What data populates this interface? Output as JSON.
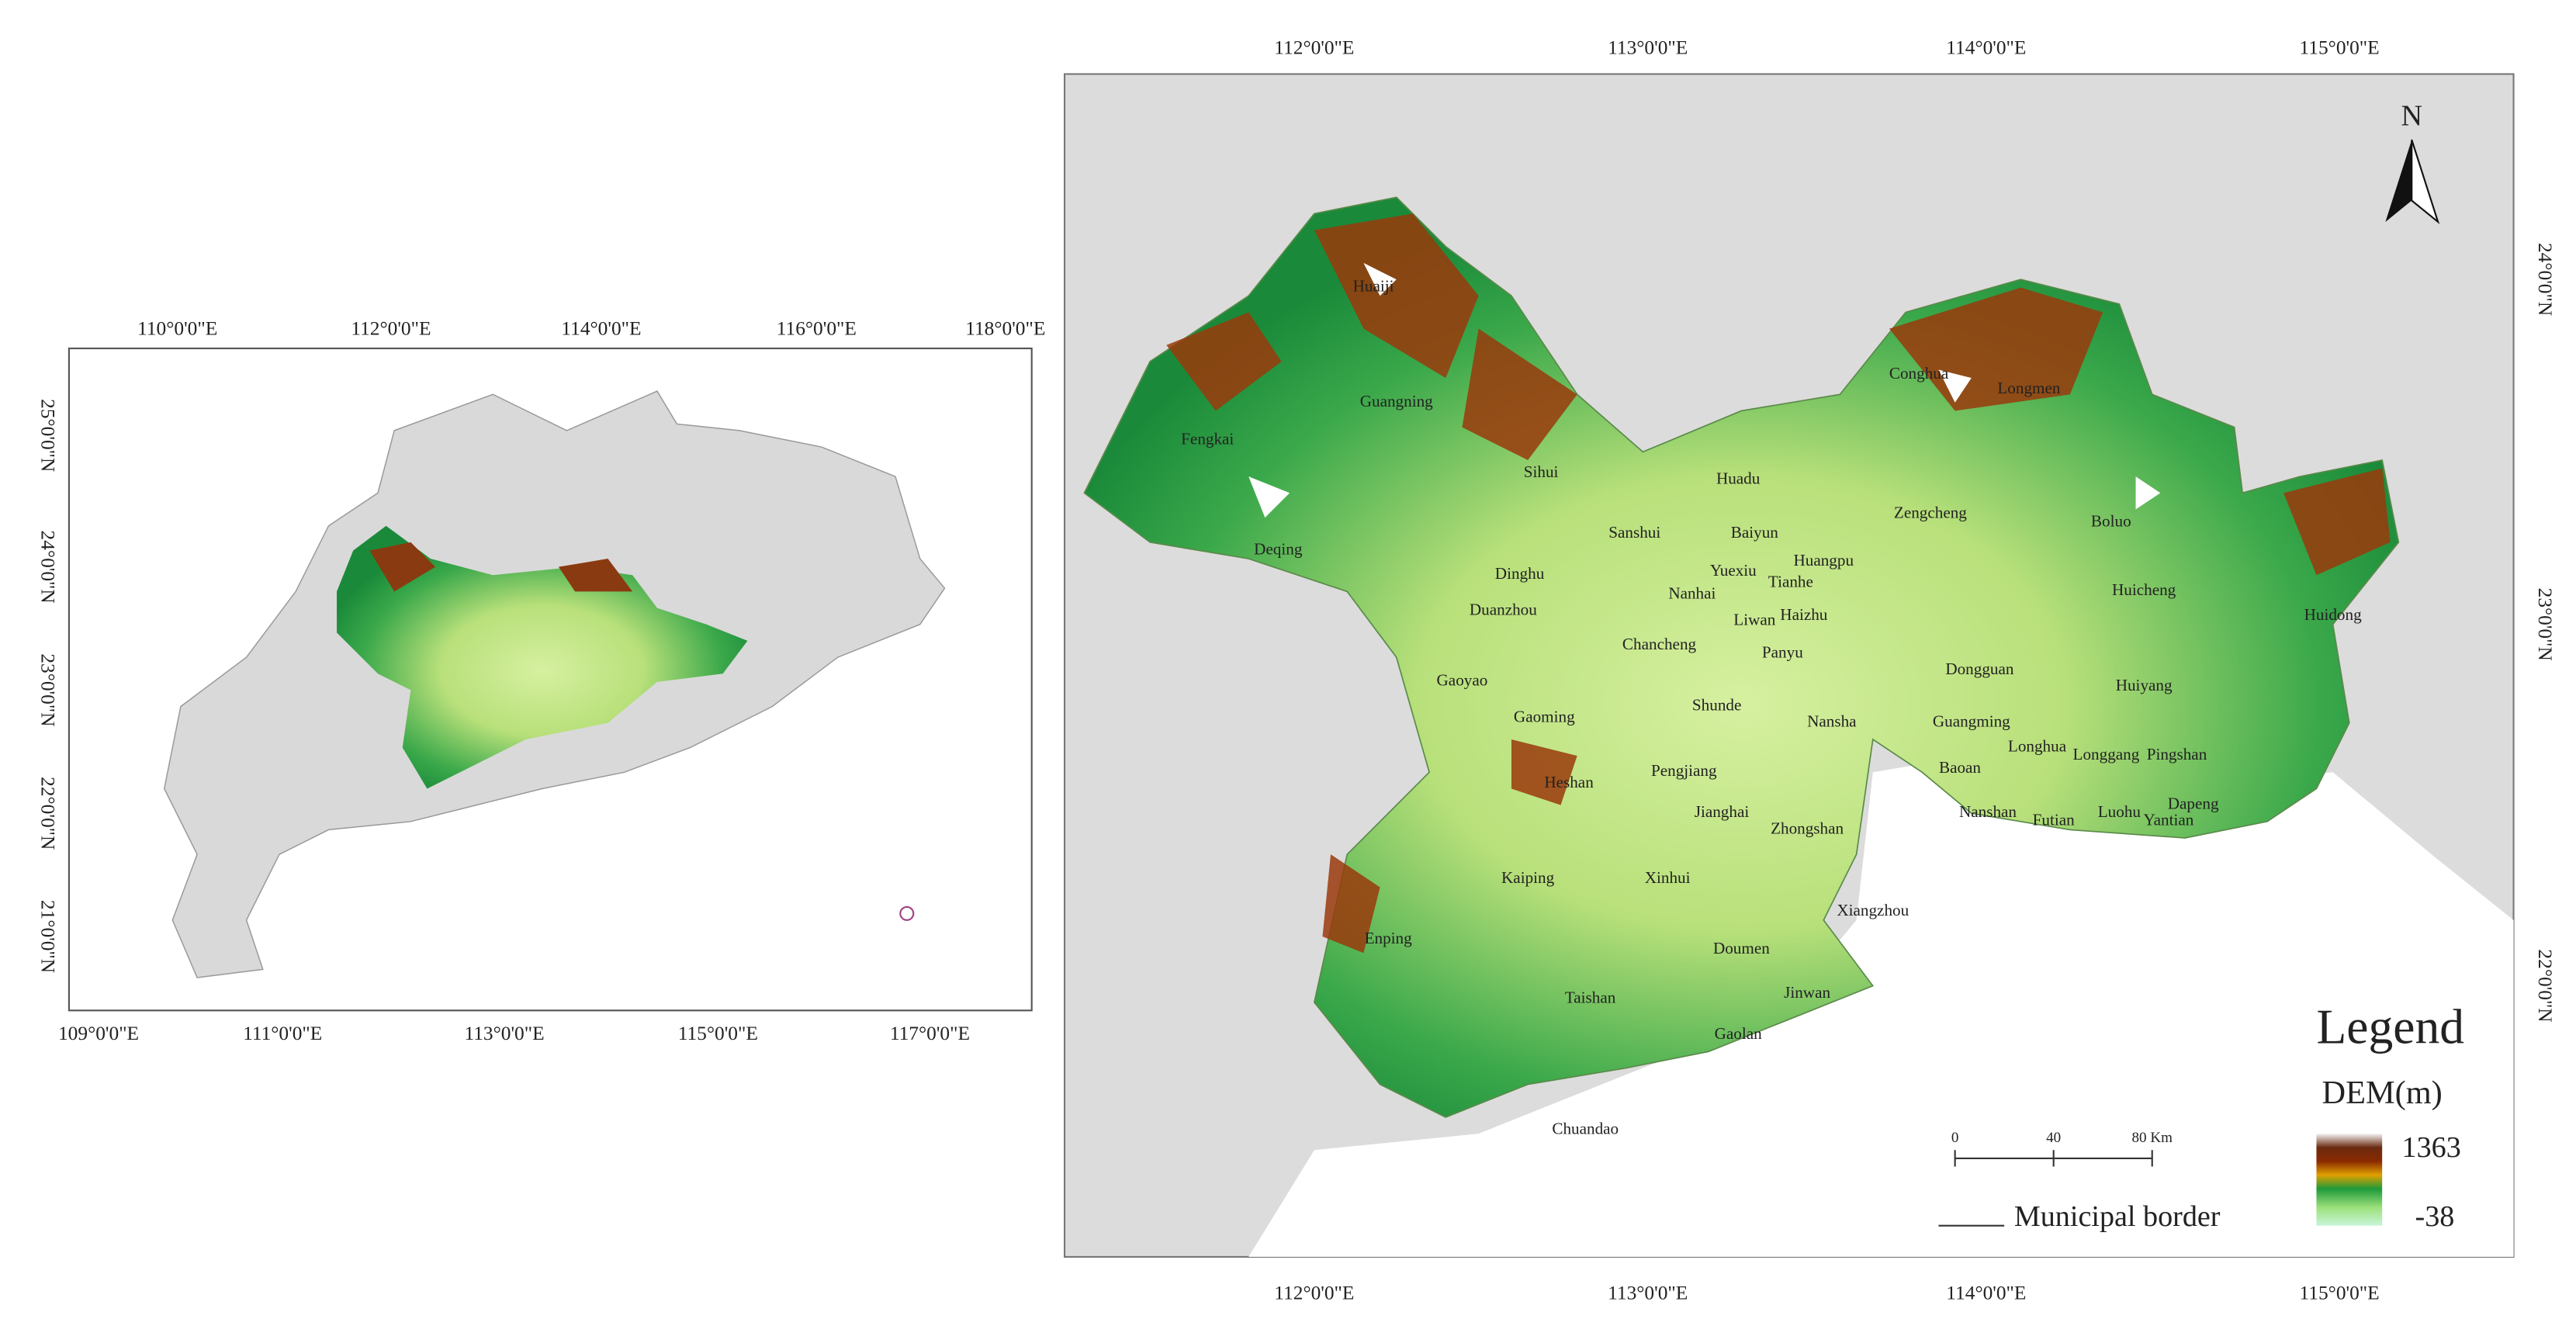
{
  "inset": {
    "top_labels": [
      "110°0'0\"E",
      "112°0'0\"E",
      "114°0'0\"E",
      "116°0'0\"E",
      "118°0'0\"E"
    ],
    "bottom_labels": [
      "109°0'0\"E",
      "111°0'0\"E",
      "113°0'0\"E",
      "115°0'0\"E",
      "117°0'0\"E"
    ],
    "left_labels": [
      "25°0'0\"N",
      "24°0'0\"N",
      "23°0'0\"N",
      "22°0'0\"N",
      "21°0'0\"N"
    ]
  },
  "main": {
    "top_labels": [
      "112°0'0\"E",
      "113°0'0\"E",
      "114°0'0\"E",
      "115°0'0\"E"
    ],
    "bottom_labels": [
      "112°0'0\"E",
      "113°0'0\"E",
      "114°0'0\"E",
      "115°0'0\"E"
    ],
    "right_labels": [
      "24°0'0\"N",
      "23°0'0\"N",
      "22°0'0\"N"
    ],
    "north": "N",
    "places": [
      "Huaiji",
      "Guangning",
      "Fengkai",
      "Sihui",
      "Deqing",
      "Sanshui",
      "Huadu",
      "Baiyun",
      "Huangpu",
      "Zengcheng",
      "Conghua",
      "Longmen",
      "Boluo",
      "Huicheng",
      "Huidong",
      "Dinghu",
      "Duanzhou",
      "Yuexiu",
      "Tianhe",
      "Liwan",
      "Haizhu",
      "Nanhai",
      "Chancheng",
      "Panyu",
      "Gaoyao",
      "Gaoming",
      "Shunde",
      "Nansha",
      "Dongguan",
      "Huiyang",
      "Guangming",
      "Longhua",
      "Baoan",
      "Longgang",
      "Pingshan",
      "Nanshan",
      "Futian",
      "Luohu",
      "Yantian",
      "Heshan",
      "Pengjiang",
      "Jianghai",
      "Zhongshan",
      "Kaiping",
      "Xinhui",
      "Xiangzhou",
      "Doumen",
      "Jinwan",
      "Enping",
      "Taishan",
      "Gaolan",
      "Chuandao",
      "Dapeng"
    ]
  },
  "legend": {
    "title": "Legend",
    "dem": "DEM(m)",
    "max": "1363",
    "min": "-38",
    "border": "Municipal border",
    "scale": [
      "0",
      "40",
      "80 Km"
    ]
  }
}
